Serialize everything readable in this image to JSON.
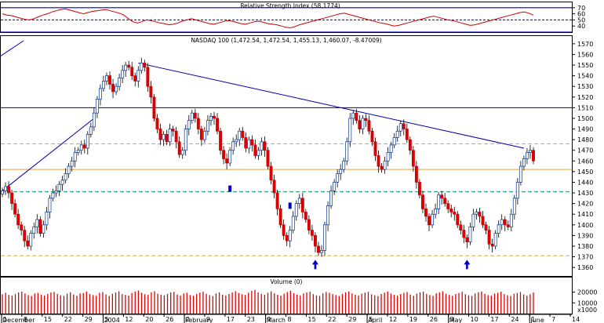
{
  "chart_data": [
    {
      "type": "line",
      "title": "Relative Strength Index (58.1774)",
      "ylim": [
        30,
        80
      ],
      "yticks": [
        40,
        50,
        60,
        70
      ],
      "reference_lines": [
        {
          "value": 70,
          "style": "solid"
        },
        {
          "value": 50,
          "style": "dashed"
        },
        {
          "value": 30,
          "style": "solid"
        }
      ],
      "series": [
        {
          "values": [
            60,
            58,
            57,
            55,
            53,
            51,
            50,
            52,
            55,
            58,
            60,
            63,
            65,
            67,
            68,
            66,
            64,
            62,
            60,
            62,
            64,
            65,
            66,
            67,
            65,
            63,
            61,
            58,
            52,
            47,
            45,
            47,
            50,
            49,
            47,
            45,
            44,
            42,
            43,
            45,
            48,
            50,
            52,
            50,
            48,
            46,
            44,
            43,
            45,
            47,
            49,
            48,
            46,
            44,
            43,
            45,
            47,
            48,
            46,
            44,
            43,
            42,
            40,
            38,
            37,
            39,
            42,
            44,
            46,
            48,
            50,
            52,
            54,
            56,
            58,
            60,
            61,
            59,
            57,
            55,
            53,
            51,
            49,
            47,
            45,
            44,
            42,
            40,
            41,
            43,
            45,
            47,
            49,
            51,
            53,
            55,
            56,
            54,
            52,
            50,
            49,
            47,
            45,
            43,
            41,
            42,
            44,
            46,
            48,
            50,
            52,
            54,
            56,
            58,
            60,
            62,
            63,
            61,
            58
          ]
        }
      ]
    },
    {
      "type": "candlestick",
      "title": "NASDAQ 100 (1,472.54, 1,472.54, 1,455.13, 1,460.07, -8.47009)",
      "ylim": [
        1352,
        1578
      ],
      "yticks": [
        1360,
        1370,
        1380,
        1390,
        1400,
        1410,
        1420,
        1430,
        1440,
        1450,
        1460,
        1470,
        1480,
        1490,
        1500,
        1510,
        1520,
        1530,
        1540,
        1550,
        1560,
        1570
      ],
      "x_ticks": [
        "1",
        "8",
        "15",
        "22",
        "29",
        "5",
        "12",
        "20",
        "26",
        "2",
        "9",
        "17",
        "23",
        "1",
        "8",
        "15",
        "22",
        "29",
        "5",
        "12",
        "19",
        "26",
        "3",
        "10",
        "17",
        "24",
        "1",
        "7",
        "14"
      ],
      "month_labels": [
        "December",
        "2004",
        "February",
        "March",
        "April",
        "May",
        "June"
      ],
      "reference_lines": [
        {
          "value": 1510,
          "color": "#0000aa",
          "style": "solid"
        },
        {
          "value": 1476,
          "color": "#e8a040",
          "style": "dashed"
        },
        {
          "value": 1452,
          "color": "#e8a040",
          "style": "solid"
        },
        {
          "value": 1431,
          "color": "#009966",
          "style": "dashed"
        },
        {
          "value": 1371,
          "color": "#e8a040",
          "style": "dashed"
        }
      ],
      "closes": [
        1432,
        1436,
        1430,
        1420,
        1410,
        1400,
        1395,
        1385,
        1380,
        1392,
        1398,
        1405,
        1392,
        1400,
        1412,
        1425,
        1430,
        1432,
        1438,
        1442,
        1448,
        1455,
        1460,
        1468,
        1470,
        1475,
        1472,
        1485,
        1492,
        1505,
        1518,
        1528,
        1535,
        1540,
        1532,
        1525,
        1530,
        1538,
        1545,
        1550,
        1548,
        1540,
        1535,
        1545,
        1552,
        1548,
        1530,
        1520,
        1500,
        1490,
        1480,
        1485,
        1478,
        1490,
        1488,
        1478,
        1466,
        1470,
        1490,
        1498,
        1505,
        1500,
        1490,
        1480,
        1488,
        1498,
        1502,
        1500,
        1488,
        1470,
        1462,
        1458,
        1470,
        1478,
        1480,
        1488,
        1482,
        1472,
        1480,
        1475,
        1465,
        1470,
        1478,
        1470,
        1455,
        1442,
        1430,
        1415,
        1400,
        1390,
        1385,
        1395,
        1408,
        1420,
        1425,
        1412,
        1405,
        1395,
        1390,
        1380,
        1374,
        1376,
        1400,
        1418,
        1432,
        1440,
        1448,
        1452,
        1460,
        1478,
        1500,
        1505,
        1498,
        1490,
        1500,
        1498,
        1488,
        1478,
        1465,
        1455,
        1452,
        1460,
        1468,
        1475,
        1482,
        1488,
        1495,
        1490,
        1480,
        1470,
        1455,
        1440,
        1428,
        1415,
        1408,
        1400,
        1410,
        1415,
        1428,
        1425,
        1420,
        1415,
        1412,
        1410,
        1400,
        1395,
        1388,
        1384,
        1398,
        1410,
        1412,
        1408,
        1400,
        1395,
        1382,
        1380,
        1392,
        1400,
        1405,
        1400,
        1398,
        1410,
        1425,
        1440,
        1455,
        1462,
        1468,
        1470,
        1460
      ],
      "trendlines": [
        {
          "from": [
            0,
            1432
          ],
          "to": [
            29,
            1500
          ]
        },
        {
          "from": [
            43,
            1552
          ],
          "to": [
            165,
            1472
          ]
        }
      ],
      "arrows": [
        {
          "index": 99,
          "value": 1362
        },
        {
          "index": 147,
          "value": 1362
        }
      ]
    },
    {
      "type": "bar",
      "title": "Volume (0)",
      "ylim": [
        0,
        30000
      ],
      "yticks": [
        10000,
        20000
      ],
      "bottom_label": "x1000",
      "values": [
        18000,
        19500,
        17500,
        16800,
        18200,
        19800,
        20500,
        18800,
        17200,
        16500,
        18700,
        19300,
        17600,
        16900,
        18300,
        19700,
        20200,
        18400,
        17100,
        16600,
        18600,
        19900,
        17800,
        16700,
        18900,
        19200,
        20600,
        18300,
        17300,
        16800,
        19400,
        20100,
        17900,
        16600,
        18500,
        19600,
        20800,
        18200,
        17400,
        16900,
        19100,
        20700,
        21500,
        19300,
        18100,
        17500,
        19900,
        20900,
        18600,
        17700,
        16800,
        18400,
        19800,
        20300,
        17900,
        16900,
        18800,
        19500,
        17300,
        16700,
        18200,
        19600,
        20400,
        18500,
        17200,
        16400,
        18700,
        19800,
        17600,
        16900,
        18300,
        19700,
        20900,
        19200,
        18000,
        17400,
        19500,
        21200,
        22000,
        19800,
        18300,
        17600,
        19400,
        20800,
        18900,
        17700,
        16800,
        18600,
        20100,
        21300,
        19000,
        17800,
        16900,
        18800,
        19700,
        20500,
        18100,
        17000,
        16600,
        18900,
        20200,
        19400,
        18200,
        17300,
        16500,
        18400,
        19900,
        20700,
        18800,
        17600,
        16900,
        18500,
        19600,
        20300,
        17900,
        17100,
        16400,
        18300,
        19500,
        20600,
        18700,
        17500,
        16800,
        18200,
        19400,
        20100,
        17800,
        16700,
        18600,
        19800,
        20500,
        18400,
        17300,
        16600,
        18900,
        19700,
        20800,
        18500,
        17400,
        16700,
        18300,
        19200,
        20300,
        18100,
        17000,
        16500,
        18800,
        19900,
        20600,
        18400,
        17200,
        16900,
        18700,
        19500,
        20400,
        18200,
        17100,
        16600,
        18500,
        19300,
        20200,
        17900,
        16800,
        18100,
        19600
      ]
    }
  ]
}
